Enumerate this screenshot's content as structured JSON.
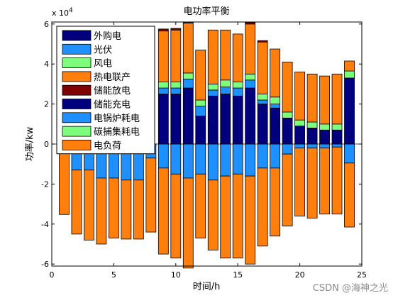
{
  "chart_data": {
    "type": "bar",
    "stacked": true,
    "title": "电功率平衡",
    "xlabel": "时间/h",
    "ylabel": "功率/kw",
    "y_multiplier": "x 10",
    "y_multiplier_exponent": "4",
    "xlim": [
      0,
      25
    ],
    "ylim": [
      -61000,
      61000
    ],
    "x_ticks": [
      0,
      5,
      10,
      15,
      20,
      25
    ],
    "y_ticks": [
      -60000,
      -40000,
      -20000,
      0,
      20000,
      40000,
      60000
    ],
    "y_tick_labels": [
      "-6",
      "-4",
      "-2",
      "0",
      "2",
      "4",
      "6"
    ],
    "grid": false,
    "legend_position": "top-left",
    "categories": [
      1,
      2,
      3,
      4,
      5,
      6,
      7,
      8,
      9,
      10,
      11,
      12,
      13,
      14,
      15,
      16,
      17,
      18,
      19,
      20,
      21,
      22,
      23,
      24
    ],
    "series": [
      {
        "name": "外购电",
        "color": "#00007f",
        "values": [
          0,
          0,
          0,
          0,
          0,
          0,
          0,
          0,
          25000,
          25000,
          28000,
          14000,
          24000,
          25000,
          24000,
          28000,
          20000,
          18000,
          13000,
          9000,
          8000,
          7000,
          7000,
          33000
        ]
      },
      {
        "name": "光伏",
        "color": "#1e90ff",
        "values": [
          0,
          0,
          0,
          0,
          0,
          0,
          0,
          0,
          3000,
          3000,
          4500,
          5000,
          3000,
          3500,
          4000,
          4000,
          2000,
          2000,
          0,
          0,
          0,
          0,
          0,
          0
        ]
      },
      {
        "name": "风电",
        "color": "#7dff7d",
        "values": [
          0,
          0,
          0,
          0,
          0,
          0,
          0,
          0,
          3000,
          3000,
          3000,
          3000,
          3000,
          3500,
          3000,
          3000,
          3000,
          3500,
          3000,
          3000,
          3000,
          3000,
          3000,
          3500
        ]
      },
      {
        "name": "热电联产",
        "color": "#ff7f0e",
        "values": [
          0,
          0,
          0,
          0,
          0,
          0,
          0,
          0,
          25500,
          26000,
          25000,
          25000,
          27000,
          25000,
          24000,
          25000,
          26000,
          24000,
          25000,
          24000,
          24000,
          24000,
          25000,
          5000
        ]
      },
      {
        "name": "储能放电",
        "color": "#7f0000",
        "values": [
          0,
          0,
          0,
          0,
          0,
          0,
          0,
          0,
          1000,
          800,
          500,
          0,
          0,
          0,
          0,
          700,
          700,
          0,
          0,
          0,
          0,
          0,
          0,
          0
        ]
      },
      {
        "name": "储能充电",
        "color": "#00007f",
        "values": [
          -200,
          0,
          0,
          0,
          0,
          0,
          0,
          0,
          0,
          0,
          0,
          0,
          0,
          0,
          0,
          0,
          0,
          0,
          0,
          0,
          0,
          0,
          0,
          0
        ]
      },
      {
        "name": "电锅炉耗电",
        "color": "#1e90ff",
        "values": [
          -3000,
          -13000,
          -13000,
          -17000,
          -17000,
          -18000,
          -18000,
          -7000,
          -12000,
          -15000,
          -17000,
          -15000,
          -18000,
          -16000,
          -15000,
          -16000,
          -12000,
          -12000,
          -5000,
          -2000,
          -2000,
          -2000,
          -1500,
          -9500
        ]
      },
      {
        "name": "碳捕集耗电",
        "color": "#7dff7d",
        "values": [
          0,
          0,
          0,
          0,
          0,
          0,
          0,
          0,
          0,
          0,
          0,
          0,
          0,
          0,
          0,
          0,
          0,
          0,
          0,
          0,
          0,
          0,
          0,
          0
        ]
      },
      {
        "name": "电负荷",
        "color": "#ff7f0e",
        "values": [
          -32000,
          -32000,
          -35000,
          -33000,
          -30000,
          -29500,
          -29500,
          -37000,
          -43000,
          -42000,
          -45000,
          -32000,
          -35000,
          -41000,
          -42000,
          -44000,
          -39000,
          -34000,
          -36000,
          -34000,
          -35000,
          -33000,
          -33500,
          -32000
        ]
      }
    ]
  },
  "watermark": "CSDN @海神之光"
}
